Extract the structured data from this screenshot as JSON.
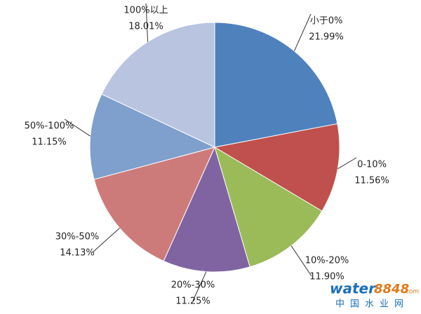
{
  "chart_data": {
    "type": "pie",
    "categories": [
      "小于0%",
      "0-10%",
      "10%-20%",
      "20%-30%",
      "30%-50%",
      "50%-100%",
      "100%以上"
    ],
    "values": [
      21.99,
      11.56,
      11.9,
      11.25,
      14.13,
      11.15,
      18.01
    ],
    "value_labels": [
      "21.99%",
      "11.56%",
      "11.90%",
      "11.25%",
      "14.13%",
      "11.15%",
      "18.01%"
    ],
    "colors": [
      "#4f81bd",
      "#c0504d",
      "#9bbb59",
      "#8064a2",
      "#cd7b7a",
      "#7f9fcd",
      "#b8c4e0"
    ],
    "watermark": {
      "brand": "water",
      "number": "8848",
      "suffix": ".com",
      "site": "中国水业网"
    }
  }
}
